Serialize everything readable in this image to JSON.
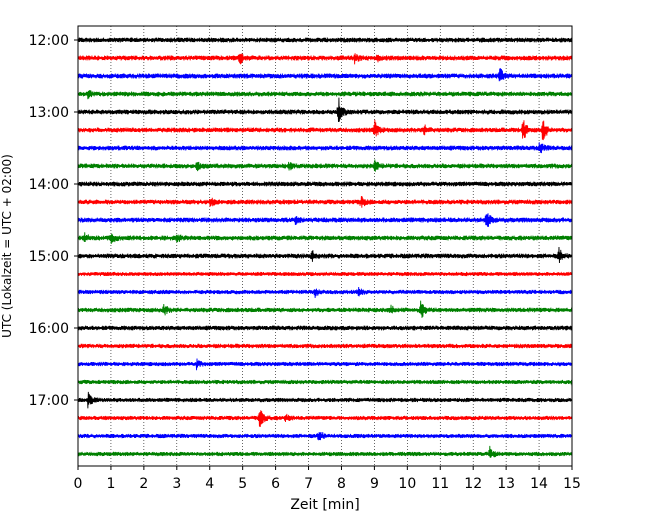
{
  "chart_data": {
    "type": "line",
    "title": "",
    "xlabel": "Zeit  [min]",
    "ylabel": "UTC (Lokalzeit = UTC + 02:00)",
    "xlim": [
      0,
      15
    ],
    "x_ticks": [
      "0",
      "1",
      "2",
      "3",
      "4",
      "5",
      "6",
      "7",
      "8",
      "9",
      "10",
      "11",
      "12",
      "13",
      "14",
      "15"
    ],
    "y_ticks": [
      "12:00",
      "13:00",
      "14:00",
      "15:00",
      "16:00",
      "17:00"
    ],
    "grid": "vertical dotted",
    "trace_interval_minutes": 15,
    "series": [
      {
        "start": "12:00",
        "color": "#000000",
        "events": [],
        "noise": 0.45
      },
      {
        "start": "12:15",
        "color": "#ff0000",
        "events": [
          [
            4.9,
            3.0
          ],
          [
            8.4,
            2.2
          ],
          [
            9.1,
            1.8
          ]
        ],
        "noise": 0.5
      },
      {
        "start": "12:30",
        "color": "#0000ff",
        "events": [
          [
            12.8,
            4.0
          ]
        ],
        "noise": 0.5
      },
      {
        "start": "12:45",
        "color": "#008000",
        "events": [
          [
            0.3,
            1.5
          ]
        ],
        "noise": 0.45
      },
      {
        "start": "13:00",
        "color": "#000000",
        "events": [
          [
            7.9,
            7.0
          ]
        ],
        "noise": 0.45
      },
      {
        "start": "13:15",
        "color": "#ff0000",
        "events": [
          [
            9.0,
            4.5
          ],
          [
            10.5,
            2.5
          ],
          [
            13.5,
            6.0
          ],
          [
            14.1,
            7.0
          ]
        ],
        "noise": 0.45
      },
      {
        "start": "13:30",
        "color": "#0000ff",
        "events": [
          [
            14.0,
            3.0
          ]
        ],
        "noise": 0.45
      },
      {
        "start": "13:45",
        "color": "#008000",
        "events": [
          [
            3.6,
            2.0
          ],
          [
            6.4,
            2.0
          ],
          [
            9.0,
            2.5
          ]
        ],
        "noise": 0.45
      },
      {
        "start": "14:00",
        "color": "#000000",
        "events": [],
        "noise": 0.45
      },
      {
        "start": "14:15",
        "color": "#ff0000",
        "events": [
          [
            4.0,
            2.5
          ],
          [
            8.6,
            2.5
          ]
        ],
        "noise": 0.45
      },
      {
        "start": "14:30",
        "color": "#0000ff",
        "events": [
          [
            6.6,
            2.0
          ],
          [
            12.4,
            5.0
          ]
        ],
        "noise": 0.5
      },
      {
        "start": "14:45",
        "color": "#008000",
        "events": [
          [
            0.2,
            2.0
          ],
          [
            1.0,
            3.0
          ],
          [
            3.0,
            1.6
          ]
        ],
        "noise": 0.45
      },
      {
        "start": "15:00",
        "color": "#000000",
        "events": [
          [
            7.1,
            2.5
          ],
          [
            14.6,
            3.5
          ]
        ],
        "noise": 0.45
      },
      {
        "start": "15:15",
        "color": "#ff0000",
        "events": [],
        "noise": 0.25
      },
      {
        "start": "15:30",
        "color": "#0000ff",
        "events": [
          [
            7.2,
            2.0
          ],
          [
            8.5,
            2.0
          ]
        ],
        "noise": 0.3
      },
      {
        "start": "15:45",
        "color": "#008000",
        "events": [
          [
            2.6,
            2.5
          ],
          [
            9.5,
            2.0
          ],
          [
            10.4,
            5.0
          ]
        ],
        "noise": 0.4
      },
      {
        "start": "16:00",
        "color": "#000000",
        "events": [],
        "noise": 0.4
      },
      {
        "start": "16:15",
        "color": "#ff0000",
        "events": [],
        "noise": 0.35
      },
      {
        "start": "16:30",
        "color": "#0000ff",
        "events": [
          [
            3.6,
            2.0
          ]
        ],
        "noise": 0.3
      },
      {
        "start": "16:45",
        "color": "#008000",
        "events": [
          [
            15.0,
            2.0
          ]
        ],
        "noise": 0.3
      },
      {
        "start": "17:00",
        "color": "#000000",
        "events": [
          [
            0.3,
            3.5
          ]
        ],
        "noise": 0.3
      },
      {
        "start": "17:15",
        "color": "#ff0000",
        "events": [
          [
            5.5,
            6.0
          ],
          [
            6.3,
            1.5
          ]
        ],
        "noise": 0.3
      },
      {
        "start": "17:30",
        "color": "#0000ff",
        "events": [
          [
            7.3,
            3.5
          ]
        ],
        "noise": 0.3
      },
      {
        "start": "17:45",
        "color": "#008000",
        "events": [
          [
            12.5,
            3.0
          ]
        ],
        "noise": 0.3
      }
    ]
  }
}
